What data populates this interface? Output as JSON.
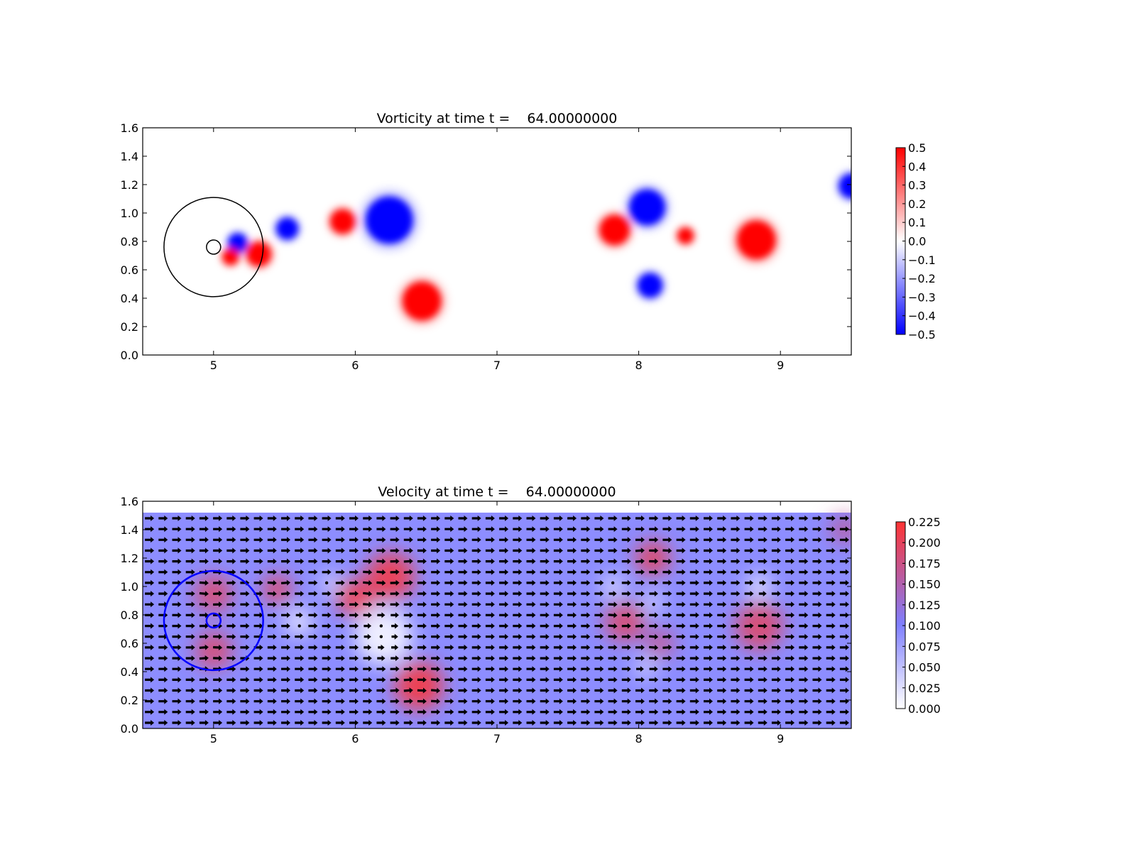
{
  "chart_data": [
    {
      "type": "heatmap",
      "title": "Vorticity at time t =    64.00000000",
      "xlim": [
        4.5,
        9.5
      ],
      "ylim": [
        0.0,
        1.6
      ],
      "xticks": [
        "5",
        "6",
        "7",
        "8",
        "9"
      ],
      "yticks": [
        "0.0",
        "0.2",
        "0.4",
        "0.6",
        "0.8",
        "1.0",
        "1.2",
        "1.4",
        "1.6"
      ],
      "colormap": [
        "#0000ff",
        "#ffffff",
        "#ff0000"
      ],
      "colorbar": {
        "range": [
          -0.5,
          0.5
        ],
        "ticks": [
          "−0.5",
          "−0.4",
          "−0.3",
          "−0.2",
          "−0.1",
          "0.0",
          "0.1",
          "0.2",
          "0.3",
          "0.4",
          "0.5"
        ]
      },
      "grid": false,
      "overlay_circles": [
        {
          "cx": 5.0,
          "cy": 0.76,
          "r": 0.35,
          "color": "#000000"
        },
        {
          "cx": 5.0,
          "cy": 0.76,
          "r": 0.05,
          "color": "#000000"
        }
      ],
      "vortices": [
        {
          "x": 5.17,
          "y": 0.79,
          "strength": -0.5,
          "r": 0.07
        },
        {
          "x": 5.12,
          "y": 0.69,
          "strength": 0.5,
          "r": 0.06
        },
        {
          "x": 5.32,
          "y": 0.71,
          "strength": 0.5,
          "r": 0.09
        },
        {
          "x": 5.52,
          "y": 0.89,
          "strength": -0.5,
          "r": 0.08
        },
        {
          "x": 5.91,
          "y": 0.94,
          "strength": 0.5,
          "r": 0.09
        },
        {
          "x": 6.24,
          "y": 0.95,
          "strength": -0.5,
          "r": 0.17
        },
        {
          "x": 6.47,
          "y": 0.38,
          "strength": 0.5,
          "r": 0.14
        },
        {
          "x": 7.83,
          "y": 0.88,
          "strength": 0.5,
          "r": 0.11
        },
        {
          "x": 8.06,
          "y": 1.04,
          "strength": -0.5,
          "r": 0.13
        },
        {
          "x": 8.33,
          "y": 0.84,
          "strength": 0.5,
          "r": 0.06
        },
        {
          "x": 8.08,
          "y": 0.49,
          "strength": -0.5,
          "r": 0.09
        },
        {
          "x": 8.83,
          "y": 0.81,
          "strength": 0.5,
          "r": 0.14
        },
        {
          "x": 9.5,
          "y": 1.19,
          "strength": -0.5,
          "r": 0.09
        }
      ]
    },
    {
      "type": "heatmap",
      "title": "Velocity at time t =    64.00000000",
      "xlim": [
        4.5,
        9.5
      ],
      "ylim": [
        0.0,
        1.6
      ],
      "xticks": [
        "5",
        "6",
        "7",
        "8",
        "9"
      ],
      "yticks": [
        "0.0",
        "0.2",
        "0.4",
        "0.6",
        "0.8",
        "1.0",
        "1.2",
        "1.4",
        "1.6"
      ],
      "colormap": [
        "#ffffff",
        "#7f7fff",
        "#ff3333"
      ],
      "background_speed": 0.1,
      "colorbar": {
        "range": [
          0.0,
          0.225
        ],
        "ticks": [
          "0.000",
          "0.025",
          "0.050",
          "0.075",
          "0.100",
          "0.125",
          "0.150",
          "0.175",
          "0.200",
          "0.225"
        ]
      },
      "grid": false,
      "overlay": "quiver",
      "overlay_circles": [
        {
          "cx": 5.0,
          "cy": 0.76,
          "r": 0.35,
          "color": "#0000ff"
        },
        {
          "cx": 5.0,
          "cy": 0.76,
          "r": 0.05,
          "color": "#0000ff"
        }
      ],
      "speed_features": [
        {
          "x": 5.0,
          "y": 0.95,
          "speed": 0.2,
          "r": 0.13
        },
        {
          "x": 5.0,
          "y": 0.55,
          "speed": 0.2,
          "r": 0.13
        },
        {
          "x": 5.45,
          "y": 0.98,
          "speed": 0.21,
          "r": 0.1
        },
        {
          "x": 6.0,
          "y": 0.92,
          "speed": 0.22,
          "r": 0.13
        },
        {
          "x": 6.25,
          "y": 1.07,
          "speed": 0.22,
          "r": 0.17
        },
        {
          "x": 6.45,
          "y": 0.3,
          "speed": 0.225,
          "r": 0.17
        },
        {
          "x": 7.9,
          "y": 0.75,
          "speed": 0.2,
          "r": 0.14
        },
        {
          "x": 8.1,
          "y": 1.2,
          "speed": 0.21,
          "r": 0.12
        },
        {
          "x": 8.15,
          "y": 0.6,
          "speed": 0.18,
          "r": 0.1
        },
        {
          "x": 8.85,
          "y": 0.72,
          "speed": 0.2,
          "r": 0.17
        },
        {
          "x": 9.45,
          "y": 1.4,
          "speed": 0.17,
          "r": 0.1
        },
        {
          "x": 6.2,
          "y": 0.65,
          "speed": 0.0,
          "r": 0.2
        },
        {
          "x": 5.6,
          "y": 0.75,
          "speed": 0.0,
          "r": 0.09
        },
        {
          "x": 5.82,
          "y": 1.02,
          "speed": 0.0,
          "r": 0.06
        },
        {
          "x": 7.82,
          "y": 1.0,
          "speed": 0.0,
          "r": 0.07
        },
        {
          "x": 8.1,
          "y": 0.89,
          "speed": 0.0,
          "r": 0.06
        },
        {
          "x": 8.05,
          "y": 0.43,
          "speed": 0.0,
          "r": 0.06
        },
        {
          "x": 8.85,
          "y": 1.0,
          "speed": 0.0,
          "r": 0.08
        }
      ]
    }
  ]
}
